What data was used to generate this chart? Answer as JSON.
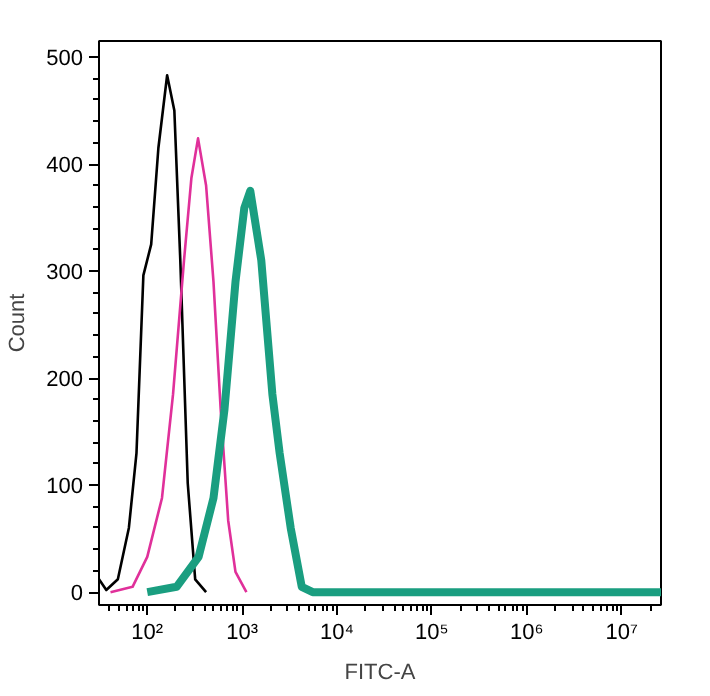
{
  "chart_data": {
    "type": "line",
    "xlabel": "FITC-A",
    "ylabel": "Count",
    "log": "x",
    "grid": false,
    "marker": "none",
    "line_style": "solid",
    "xlim": [
      31,
      26000000
    ],
    "ylim": [
      -12,
      515
    ],
    "xticks": [
      {
        "value": 100,
        "label": "10²"
      },
      {
        "value": 1000,
        "label": "10³"
      },
      {
        "value": 10000,
        "label": "10⁴"
      },
      {
        "value": 100000,
        "label": "10⁵"
      },
      {
        "value": 1000000,
        "label": "10⁶"
      },
      {
        "value": 10000000,
        "label": "10⁷"
      }
    ],
    "yticks": [
      0,
      100,
      200,
      300,
      400,
      500
    ],
    "series": [
      {
        "color": "#000000",
        "x": [
          31,
          37,
          49,
          64,
          77,
          91,
          110,
          131,
          162,
          193,
          223,
          267,
          320,
          417
        ],
        "values": [
          12,
          2,
          12,
          60,
          130,
          296,
          325,
          415,
          483,
          450,
          310,
          102,
          12,
          0
        ]
      },
      {
        "color": "#e0309a",
        "x": [
          41,
          70,
          100,
          143,
          187,
          244,
          292,
          343,
          417,
          499,
          594,
          713,
          851,
          1110
        ],
        "values": [
          0,
          5,
          33,
          88,
          185,
          310,
          387,
          424,
          380,
          290,
          171,
          67,
          19,
          0
        ]
      },
      {
        "color": "#1a9e80",
        "x": [
          100,
          204,
          348,
          499,
          652,
          851,
          1054,
          1219,
          1592,
          2083,
          2484,
          3250,
          4250,
          5550,
          26000000
        ],
        "values": [
          0,
          5,
          33,
          88,
          171,
          290,
          359,
          375,
          310,
          185,
          130,
          60,
          5,
          0,
          0
        ]
      }
    ]
  }
}
